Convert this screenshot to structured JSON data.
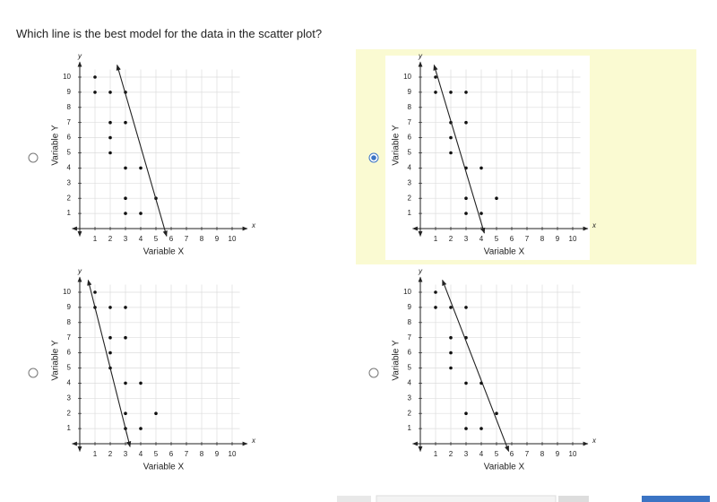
{
  "question": "Which line is the best model for the data in the scatter plot?",
  "axes": {
    "x_label": "Variable X",
    "y_label": "Variable Y",
    "x_symbol": "x",
    "y_symbol": "y",
    "xlim": [
      -0.5,
      11
    ],
    "ylim": [
      -0.5,
      11
    ],
    "xticks": [
      1,
      2,
      3,
      4,
      5,
      6,
      7,
      8,
      9,
      10
    ],
    "yticks": [
      1,
      2,
      3,
      4,
      5,
      6,
      7,
      8,
      9,
      10
    ]
  },
  "points": {
    "x": [
      1,
      1,
      2,
      3,
      2,
      3,
      2,
      2,
      3,
      4,
      5,
      3,
      3,
      4
    ],
    "y": [
      10,
      9,
      9,
      9,
      7,
      7,
      6,
      5,
      4,
      4,
      2,
      2,
      1,
      1
    ]
  },
  "options": [
    {
      "selected": false,
      "line": {
        "x": [
          2.45,
          5.7
        ],
        "y": [
          10.8,
          -0.5
        ]
      }
    },
    {
      "selected": true,
      "line": {
        "x": [
          0.9,
          4.2
        ],
        "y": [
          10.8,
          -0.3
        ]
      }
    },
    {
      "selected": false,
      "line": {
        "x": [
          0.55,
          3.3
        ],
        "y": [
          10.8,
          -0.2
        ]
      }
    },
    {
      "selected": false,
      "line": {
        "x": [
          1.45,
          5.8
        ],
        "y": [
          10.8,
          -0.5
        ]
      }
    }
  ]
}
